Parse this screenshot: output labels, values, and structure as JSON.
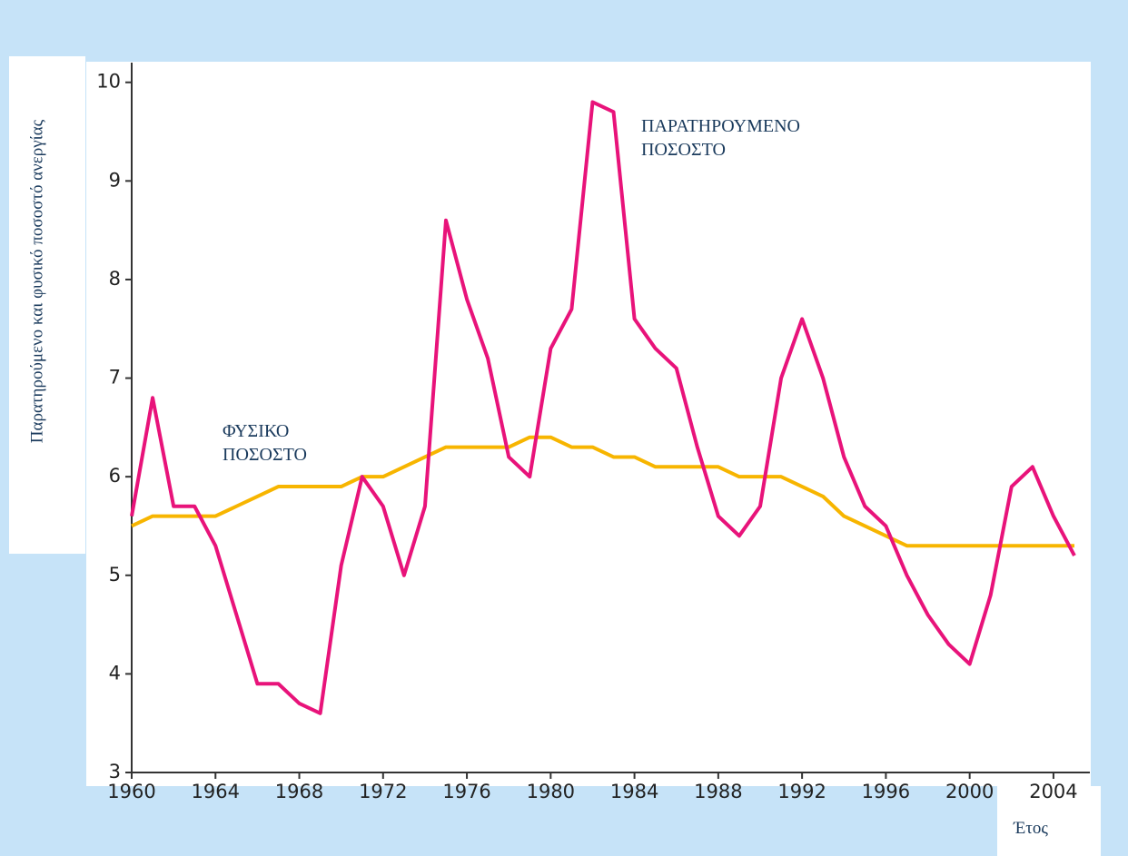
{
  "chart_data": {
    "type": "line",
    "y_label": "Παρατηρούμενο και φυσικό ποσοστό ανεργίας",
    "x_label": "Έτος",
    "x": [
      1960,
      1961,
      1962,
      1963,
      1964,
      1965,
      1966,
      1967,
      1968,
      1969,
      1970,
      1971,
      1972,
      1973,
      1974,
      1975,
      1976,
      1977,
      1978,
      1979,
      1980,
      1981,
      1982,
      1983,
      1984,
      1985,
      1986,
      1987,
      1988,
      1989,
      1990,
      1991,
      1992,
      1993,
      1994,
      1995,
      1996,
      1997,
      1998,
      1999,
      2000,
      2001,
      2002,
      2003,
      2004,
      2005
    ],
    "series": [
      {
        "name": "ΠΑΡΑΤΗΡΟΥΜΕΝΟ ΠΟΣΟΣΤΟ",
        "color": "#e8137a",
        "values": [
          5.6,
          6.8,
          5.7,
          5.7,
          5.3,
          4.6,
          3.9,
          3.9,
          3.7,
          3.6,
          5.1,
          6.0,
          5.7,
          5.0,
          5.7,
          8.6,
          7.8,
          7.2,
          6.2,
          6.0,
          7.3,
          7.7,
          9.8,
          9.7,
          7.6,
          7.3,
          7.1,
          6.3,
          5.6,
          5.4,
          5.7,
          7.0,
          7.6,
          7.0,
          6.2,
          5.7,
          5.5,
          5.0,
          4.6,
          4.3,
          4.1,
          4.8,
          5.9,
          6.1,
          5.6,
          5.2
        ]
      },
      {
        "name": "ΦΥΣΙΚΟ ΠΟΣΟΣΤΟ",
        "color": "#f7b500",
        "values": [
          5.5,
          5.6,
          5.6,
          5.6,
          5.6,
          5.7,
          5.8,
          5.9,
          5.9,
          5.9,
          5.9,
          6.0,
          6.0,
          6.1,
          6.2,
          6.3,
          6.3,
          6.3,
          6.3,
          6.4,
          6.4,
          6.3,
          6.3,
          6.2,
          6.2,
          6.1,
          6.1,
          6.1,
          6.1,
          6.0,
          6.0,
          6.0,
          5.9,
          5.8,
          5.6,
          5.5,
          5.4,
          5.3,
          5.3,
          5.3,
          5.3,
          5.3,
          5.3,
          5.3,
          5.3,
          5.3
        ]
      }
    ],
    "xlim": [
      1960,
      2005
    ],
    "xticks": [
      1960,
      1964,
      1968,
      1972,
      1976,
      1980,
      1984,
      1988,
      1992,
      1996,
      2000,
      2004
    ],
    "ylim": [
      3,
      10.2
    ],
    "yticks": [
      3,
      4,
      5,
      6,
      7,
      8,
      9,
      10
    ]
  }
}
